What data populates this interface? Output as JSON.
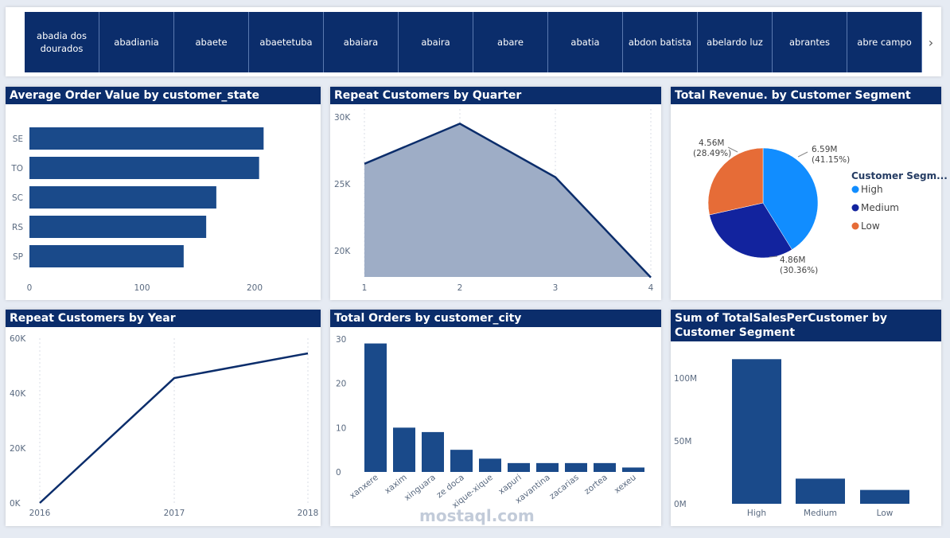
{
  "slicer": {
    "items": [
      "abadia dos dourados",
      "abadiania",
      "abaete",
      "abaetetuba",
      "abaiara",
      "abaira",
      "abare",
      "abatia",
      "abdon batista",
      "abelardo luz",
      "abrantes",
      "abre campo"
    ],
    "arrow": "chevron-right-icon"
  },
  "colors": {
    "header": "#0b2d6b",
    "bar": "#1a4a8a",
    "area": "#9eadc6",
    "line": "#0b2d6b"
  },
  "charts": {
    "aov": {
      "title": "Average Order Value by customer_state",
      "chart_data": {
        "type": "bar",
        "orientation": "horizontal",
        "categories": [
          "SE",
          "TO",
          "SC",
          "RS",
          "SP"
        ],
        "values": [
          208,
          204,
          166,
          157,
          137
        ],
        "xlim": [
          0,
          250
        ],
        "xticks": [
          "0",
          "100",
          "200"
        ]
      }
    },
    "rq": {
      "title": "Repeat Customers by Quarter",
      "chart_data": {
        "type": "area",
        "x": [
          "1",
          "2",
          "3",
          "4"
        ],
        "values": [
          26500,
          29500,
          25500,
          18000
        ],
        "ylim": [
          18000,
          30000
        ],
        "yticks": [
          "20K",
          "25K",
          "30K"
        ]
      }
    },
    "rev": {
      "title": "Total Revenue. by Customer Segment",
      "legend_title": "Customer Segm...",
      "chart_data": {
        "type": "pie",
        "slices": [
          {
            "name": "High",
            "value": 6.59,
            "label": "6.59M",
            "pct": "(41.15%)",
            "color": "#118dff"
          },
          {
            "name": "Medium",
            "value": 4.86,
            "label": "4.86M",
            "pct": "(30.36%)",
            "color": "#12239e"
          },
          {
            "name": "Low",
            "value": 4.56,
            "label": "4.56M",
            "pct": "(28.49%)",
            "color": "#e66c37"
          }
        ]
      }
    },
    "ry": {
      "title": "Repeat Customers by Year",
      "chart_data": {
        "type": "line",
        "x": [
          "2016",
          "2017",
          "2018"
        ],
        "values": [
          0,
          45500,
          54500
        ],
        "ylim": [
          0,
          60000
        ],
        "yticks": [
          "0K",
          "20K",
          "40K",
          "60K"
        ]
      }
    },
    "toc": {
      "title": "Total Orders by customer_city",
      "chart_data": {
        "type": "bar",
        "categories": [
          "xanxere",
          "xaxim",
          "xinguara",
          "ze doca",
          "xique-xique",
          "xapuri",
          "xavantina",
          "zacarias",
          "zortea",
          "xexeu"
        ],
        "values": [
          29,
          10,
          9,
          5,
          3,
          2,
          2,
          2,
          2,
          1
        ],
        "ylim": [
          0,
          30
        ],
        "yticks": [
          "0",
          "10",
          "20",
          "30"
        ]
      }
    },
    "tsc": {
      "title": "Sum of TotalSalesPerCustomer by Customer Segment",
      "chart_data": {
        "type": "bar",
        "categories": [
          "High",
          "Medium",
          "Low"
        ],
        "values": [
          115,
          20,
          11
        ],
        "ylim": [
          0,
          125
        ],
        "yticks": [
          "0M",
          "50M",
          "100M"
        ]
      }
    }
  },
  "watermark": "mostaql.com"
}
